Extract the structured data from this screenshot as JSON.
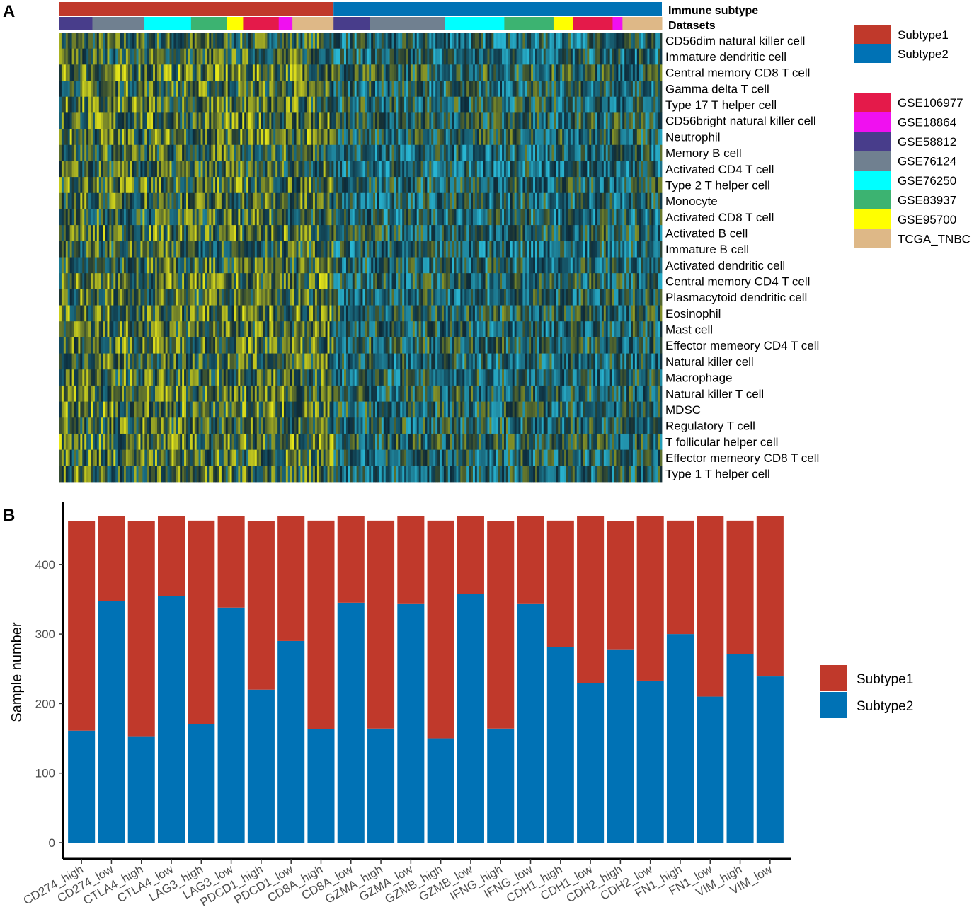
{
  "panel_a_label": "A",
  "panel_b_label": "B",
  "heatmap": {
    "annotation_labels": {
      "subtype": "Immune subtype",
      "datasets": "Datasets"
    },
    "legend_subtype": [
      {
        "label": "Subtype1",
        "color": "#C0392B"
      },
      {
        "label": "Subtype2",
        "color": "#0072B5"
      }
    ],
    "legend_datasets": [
      {
        "label": "GSE106977",
        "color": "#E41A4A"
      },
      {
        "label": "GSE18864",
        "color": "#F010F0"
      },
      {
        "label": "GSE58812",
        "color": "#483D8B"
      },
      {
        "label": "GSE76124",
        "color": "#708090"
      },
      {
        "label": "GSE76250",
        "color": "#00FFFF"
      },
      {
        "label": "GSE83937",
        "color": "#3CB371"
      },
      {
        "label": "GSE95700",
        "color": "#FFFF00"
      },
      {
        "label": "TCGA_TNBC",
        "color": "#DEB887"
      }
    ],
    "cell_types": [
      "CD56dim natural killer cell",
      "Immature dendritic cell",
      "Central memory CD8 T cell",
      "Gamma delta T cell",
      "Type 17 T helper cell",
      "CD56bright natural killer cell",
      "Neutrophil",
      "Memory B cell",
      "Activated CD4 T cell",
      "Type 2 T helper cell",
      "Monocyte",
      "Activated CD8 T cell",
      "Activated B cell",
      "Immature  B cell",
      "Activated dendritic cell",
      "Central memory CD4 T cell",
      "Plasmacytoid dendritic cell",
      "Eosinophil",
      "Mast cell",
      "Effector memeory CD4 T cell",
      "Natural killer cell",
      "Macrophage",
      "Natural killer T cell",
      "MDSC",
      "Regulatory T cell",
      "T follicular helper cell",
      "Effector memeory CD8 T cell",
      "Type 1 T helper cell"
    ],
    "subtype_split_fraction": 0.455,
    "dataset_segments_subtype1": [
      {
        "dataset": "GSE58812",
        "fraction": 0.12
      },
      {
        "dataset": "GSE76124",
        "fraction": 0.19
      },
      {
        "dataset": "GSE76250",
        "fraction": 0.17
      },
      {
        "dataset": "GSE83937",
        "fraction": 0.13
      },
      {
        "dataset": "GSE95700",
        "fraction": 0.06
      },
      {
        "dataset": "GSE106977",
        "fraction": 0.13
      },
      {
        "dataset": "GSE18864",
        "fraction": 0.05
      },
      {
        "dataset": "TCGA_TNBC",
        "fraction": 0.15
      }
    ],
    "dataset_segments_subtype2": [
      {
        "dataset": "GSE58812",
        "fraction": 0.11
      },
      {
        "dataset": "GSE76124",
        "fraction": 0.23
      },
      {
        "dataset": "GSE76250",
        "fraction": 0.18
      },
      {
        "dataset": "GSE83937",
        "fraction": 0.15
      },
      {
        "dataset": "GSE95700",
        "fraction": 0.06
      },
      {
        "dataset": "GSE106977",
        "fraction": 0.12
      },
      {
        "dataset": "GSE18864",
        "fraction": 0.03
      },
      {
        "dataset": "TCGA_TNBC",
        "fraction": 0.12
      }
    ],
    "palette": {
      "low": "#29B6D3",
      "mid": "#0D2A38",
      "high": "#E6E619"
    }
  },
  "chart_data": {
    "type": "bar",
    "stacked": true,
    "title": "",
    "xlabel": "",
    "ylabel": "Sample number",
    "ylim": [
      0,
      475
    ],
    "yticks": [
      0,
      100,
      200,
      300,
      400
    ],
    "grid": false,
    "legend_position": "right",
    "categories": [
      "CD274_high",
      "CD274_low",
      "CTLA4_high",
      "CTLA4_low",
      "LAG3_high",
      "LAG3_low",
      "PDCD1_high",
      "PDCD1_low",
      "CD8A_high",
      "CD8A_low",
      "GZMA_high",
      "GZMA_low",
      "GZMB_high",
      "GZMB_low",
      "IFNG_high",
      "IFNG_low",
      "CDH1_high",
      "CDH1_low",
      "CDH2_high",
      "CDH2_low",
      "FN1_high",
      "FN1_low",
      "VIM_high",
      "VIM_low"
    ],
    "series": [
      {
        "name": "Subtype2",
        "color": "#0072B5",
        "values": [
          161,
          347,
          153,
          355,
          170,
          338,
          220,
          290,
          163,
          345,
          164,
          344,
          150,
          358,
          164,
          344,
          281,
          229,
          277,
          233,
          300,
          210,
          271,
          239
        ]
      },
      {
        "name": "Subtype1",
        "color": "#C0392B",
        "values": [
          301,
          122,
          309,
          114,
          293,
          131,
          242,
          179,
          300,
          124,
          299,
          125,
          313,
          111,
          298,
          125,
          182,
          240,
          185,
          236,
          163,
          259,
          192,
          230
        ]
      }
    ],
    "legend_order": [
      "Subtype1",
      "Subtype2"
    ]
  }
}
